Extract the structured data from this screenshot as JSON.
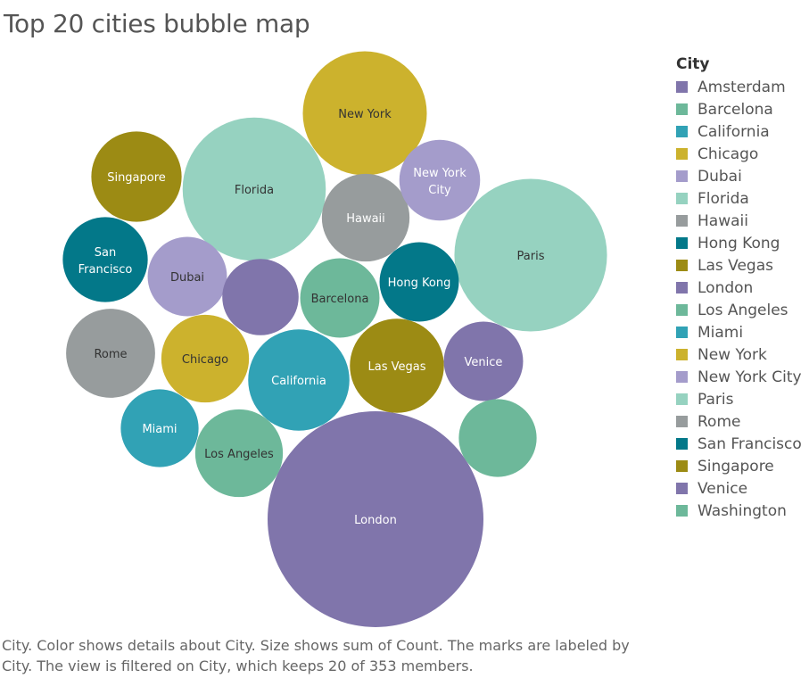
{
  "title": "Top 20 cities bubble map",
  "caption": "City.  Color shows details about City.  Size shows sum of Count.  The marks are labeled by City. The view is filtered on City, which keeps 20 of 353 members.",
  "legend": {
    "title": "City",
    "items": [
      {
        "label": "Amsterdam",
        "color": "#8075ab"
      },
      {
        "label": "Barcelona",
        "color": "#6db89a"
      },
      {
        "label": "California",
        "color": "#31a2b5"
      },
      {
        "label": "Chicago",
        "color": "#ccb22d"
      },
      {
        "label": "Dubai",
        "color": "#a49ccb"
      },
      {
        "label": "Florida",
        "color": "#96d2c0"
      },
      {
        "label": "Hawaii",
        "color": "#979c9d"
      },
      {
        "label": "Hong Kong",
        "color": "#037889"
      },
      {
        "label": "Las Vegas",
        "color": "#9c8b14"
      },
      {
        "label": "London",
        "color": "#8075ab"
      },
      {
        "label": "Los Angeles",
        "color": "#6db89a"
      },
      {
        "label": "Miami",
        "color": "#31a2b5"
      },
      {
        "label": "New York",
        "color": "#ccb22d"
      },
      {
        "label": "New York City",
        "color": "#a49ccb"
      },
      {
        "label": "Paris",
        "color": "#96d2c0"
      },
      {
        "label": "Rome",
        "color": "#979c9d"
      },
      {
        "label": "San Francisco",
        "color": "#037889"
      },
      {
        "label": "Singapore",
        "color": "#9c8b14"
      },
      {
        "label": "Venice",
        "color": "#8075ab"
      },
      {
        "label": "Washington",
        "color": "#6db89a"
      }
    ]
  },
  "chart_data": {
    "type": "bubble",
    "size_measure": "sum of Count",
    "bubbles": [
      {
        "city": "London",
        "label": "London",
        "relative_size": 100,
        "color": "#8075ab",
        "label_color": "#ffffff"
      },
      {
        "city": "Paris",
        "label": "Paris",
        "relative_size": 50,
        "color": "#96d2c0",
        "label_color": "#333333"
      },
      {
        "city": "Florida",
        "label": "Florida",
        "relative_size": 44,
        "color": "#96d2c0",
        "label_color": "#333333"
      },
      {
        "city": "New York",
        "label": "New York",
        "relative_size": 33,
        "color": "#ccb22d",
        "label_color": "#333333"
      },
      {
        "city": "California",
        "label": "California",
        "relative_size": 22,
        "color": "#31a2b5",
        "label_color": "#ffffff"
      },
      {
        "city": "Las Vegas",
        "label": "Las Vegas",
        "relative_size": 19,
        "color": "#9c8b14",
        "label_color": "#ffffff"
      },
      {
        "city": "Rome",
        "label": "Rome",
        "relative_size": 17,
        "color": "#979c9d",
        "label_color": "#333333"
      },
      {
        "city": "Hawaii",
        "label": "Hawaii",
        "relative_size": 16.5,
        "color": "#979c9d",
        "label_color": "#ffffff"
      },
      {
        "city": "Los Angeles",
        "label": "Los Angeles",
        "relative_size": 16.5,
        "color": "#6db89a",
        "label_color": "#333333"
      },
      {
        "city": "Chicago",
        "label": "Chicago",
        "relative_size": 16.5,
        "color": "#ccb22d",
        "label_color": "#333333"
      },
      {
        "city": "Barcelona",
        "label": "Barcelona",
        "relative_size": 13.5,
        "color": "#6db89a",
        "label_color": "#333333"
      },
      {
        "city": "Venice",
        "label": "Venice",
        "relative_size": 13.5,
        "color": "#8075ab",
        "label_color": "#ffffff"
      },
      {
        "city": "Hong Kong",
        "label": "Hong Kong",
        "relative_size": 13.5,
        "color": "#037889",
        "label_color": "#ffffff"
      },
      {
        "city": "New York City",
        "label": "New York City",
        "relative_size": 14,
        "color": "#a49ccb",
        "label_color": "#ffffff"
      },
      {
        "city": "Washington",
        "label": "",
        "relative_size": 13,
        "color": "#6db89a",
        "label_color": "#333333"
      },
      {
        "city": "Dubai",
        "label": "Dubai",
        "relative_size": 13.5,
        "color": "#a49ccb",
        "label_color": "#333333"
      },
      {
        "city": "Amsterdam",
        "label": "",
        "relative_size": 12.5,
        "color": "#8075ab",
        "label_color": "#ffffff"
      },
      {
        "city": "San Francisco",
        "label": "San Francisco",
        "relative_size": 15.5,
        "color": "#037889",
        "label_color": "#ffffff"
      },
      {
        "city": "Singapore",
        "label": "Singapore",
        "relative_size": 17.5,
        "color": "#9c8b14",
        "label_color": "#ffffff"
      },
      {
        "city": "Miami",
        "label": "Miami",
        "relative_size": 13,
        "color": "#31a2b5",
        "label_color": "#ffffff"
      }
    ]
  }
}
